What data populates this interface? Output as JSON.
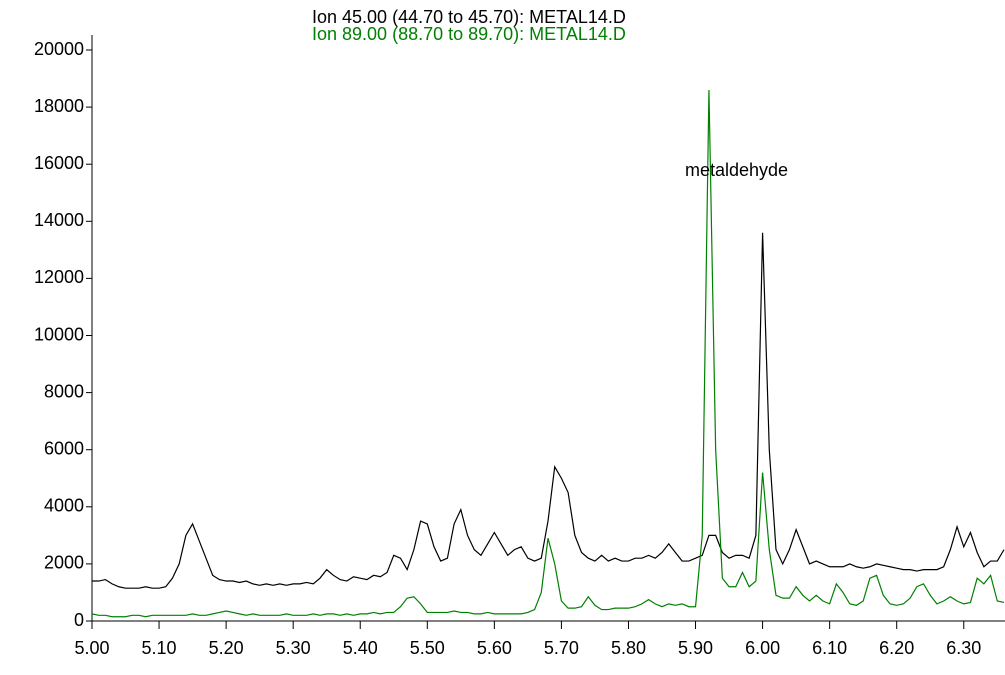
{
  "chart_data": {
    "type": "line",
    "x": [
      5,
      5.01,
      5.02,
      5.03,
      5.04,
      5.05,
      5.06,
      5.07,
      5.08,
      5.09,
      5.1,
      5.11,
      5.12,
      5.13,
      5.14,
      5.15,
      5.16,
      5.17,
      5.18,
      5.19,
      5.2,
      5.21,
      5.22,
      5.23,
      5.24,
      5.25,
      5.26,
      5.27,
      5.28,
      5.29,
      5.3,
      5.31,
      5.32,
      5.33,
      5.34,
      5.35,
      5.36,
      5.37,
      5.38,
      5.39,
      5.4,
      5.41,
      5.42,
      5.43,
      5.44,
      5.45,
      5.46,
      5.47,
      5.48,
      5.49,
      5.5,
      5.51,
      5.52,
      5.53,
      5.54,
      5.55,
      5.56,
      5.57,
      5.58,
      5.59,
      5.6,
      5.61,
      5.62,
      5.63,
      5.64,
      5.65,
      5.66,
      5.67,
      5.68,
      5.69,
      5.7,
      5.71,
      5.72,
      5.73,
      5.74,
      5.75,
      5.76,
      5.77,
      5.78,
      5.79,
      5.8,
      5.81,
      5.82,
      5.83,
      5.84,
      5.85,
      5.86,
      5.87,
      5.88,
      5.89,
      5.9,
      5.91,
      5.92,
      5.93,
      5.94,
      5.95,
      5.96,
      5.97,
      5.98,
      5.99,
      6,
      6.01,
      6.02,
      6.03,
      6.04,
      6.05,
      6.06,
      6.07,
      6.08,
      6.09,
      6.1,
      6.11,
      6.12,
      6.13,
      6.14,
      6.15,
      6.16,
      6.17,
      6.18,
      6.19,
      6.2,
      6.21,
      6.22,
      6.23,
      6.24,
      6.25,
      6.26,
      6.27,
      6.28,
      6.29,
      6.3,
      6.31,
      6.32,
      6.33,
      6.34,
      6.35,
      6.36
    ],
    "series": [
      {
        "name": "Ion  45.00 (44.70 to 45.70): METAL14.D",
        "color": "#000000",
        "values": [
          1400,
          1400,
          1450,
          1300,
          1200,
          1150,
          1150,
          1150,
          1200,
          1150,
          1150,
          1200,
          1500,
          2000,
          3000,
          3400,
          2800,
          2200,
          1600,
          1450,
          1400,
          1400,
          1350,
          1400,
          1300,
          1250,
          1300,
          1250,
          1300,
          1250,
          1300,
          1300,
          1350,
          1300,
          1500,
          1800,
          1600,
          1450,
          1400,
          1550,
          1500,
          1450,
          1600,
          1550,
          1700,
          2300,
          2200,
          1800,
          2500,
          3500,
          3400,
          2600,
          2100,
          2200,
          3400,
          3900,
          3000,
          2500,
          2300,
          2700,
          3100,
          2700,
          2300,
          2500,
          2600,
          2200,
          2100,
          2200,
          3500,
          5400,
          5000,
          4500,
          3000,
          2400,
          2200,
          2100,
          2300,
          2100,
          2200,
          2100,
          2100,
          2200,
          2200,
          2300,
          2200,
          2400,
          2700,
          2400,
          2100,
          2100,
          2200,
          2300,
          3000,
          3000,
          2400,
          2200,
          2300,
          2300,
          2200,
          3000,
          13600,
          6000,
          2500,
          2000,
          2500,
          3200,
          2600,
          2000,
          2100,
          2000,
          1900,
          1900,
          1900,
          2000,
          1900,
          1850,
          1900,
          2000,
          1950,
          1900,
          1850,
          1800,
          1800,
          1750,
          1800,
          1800,
          1800,
          1900,
          2500,
          3300,
          2600,
          3100,
          2400,
          1900,
          2100,
          2100,
          2500
        ]
      },
      {
        "name": "Ion  89.00 (88.70 to 89.70): METAL14.D",
        "color": "#008000",
        "values": [
          250,
          200,
          200,
          150,
          150,
          150,
          200,
          200,
          150,
          200,
          200,
          200,
          200,
          200,
          200,
          250,
          200,
          200,
          250,
          300,
          350,
          300,
          250,
          200,
          250,
          200,
          200,
          200,
          200,
          250,
          200,
          200,
          200,
          250,
          200,
          250,
          250,
          200,
          250,
          200,
          250,
          250,
          300,
          250,
          300,
          300,
          500,
          800,
          850,
          600,
          300,
          300,
          300,
          300,
          350,
          300,
          300,
          250,
          250,
          300,
          250,
          250,
          250,
          250,
          250,
          300,
          400,
          1000,
          2900,
          2000,
          700,
          450,
          450,
          500,
          850,
          550,
          400,
          400,
          450,
          450,
          450,
          500,
          600,
          750,
          600,
          500,
          600,
          550,
          600,
          500,
          500,
          3000,
          18600,
          6000,
          1500,
          1200,
          1200,
          1700,
          1200,
          1400,
          5200,
          2500,
          900,
          800,
          800,
          1200,
          900,
          700,
          900,
          700,
          600,
          1300,
          1000,
          600,
          550,
          700,
          1500,
          1600,
          900,
          600,
          550,
          600,
          800,
          1200,
          1300,
          900,
          600,
          700,
          850,
          700,
          600,
          650,
          1500,
          1300,
          1600,
          700,
          650
        ]
      }
    ],
    "annotations": [
      {
        "text": "metaldehyde"
      }
    ],
    "xlim": [
      5,
      6.36
    ],
    "xticks": [
      {
        "value": 5,
        "label": "5.00"
      },
      {
        "value": 5.1,
        "label": "5.10"
      },
      {
        "value": 5.2,
        "label": "5.20"
      },
      {
        "value": 5.3,
        "label": "5.30"
      },
      {
        "value": 5.4,
        "label": "5.40"
      },
      {
        "value": 5.5,
        "label": "5.50"
      },
      {
        "value": 5.6,
        "label": "5.60"
      },
      {
        "value": 5.7,
        "label": "5.70"
      },
      {
        "value": 5.8,
        "label": "5.80"
      },
      {
        "value": 5.9,
        "label": "5.90"
      },
      {
        "value": 6,
        "label": "6.00"
      },
      {
        "value": 6.1,
        "label": "6.10"
      },
      {
        "value": 6.2,
        "label": "6.20"
      },
      {
        "value": 6.3,
        "label": "6.30"
      }
    ],
    "ylim": [
      0,
      20000
    ],
    "yticks": [
      0,
      2000,
      4000,
      6000,
      8000,
      10000,
      12000,
      14000,
      16000,
      18000,
      20000
    ]
  }
}
